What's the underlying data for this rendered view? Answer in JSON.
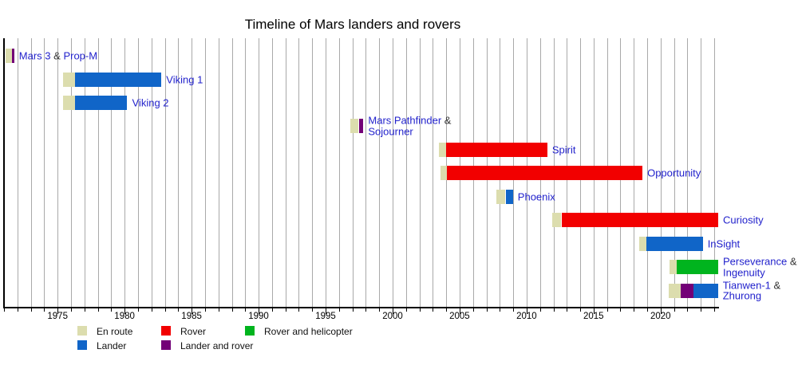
{
  "chart_data": {
    "type": "timeline",
    "title": "Timeline of Mars landers and rovers",
    "x_axis": {
      "min": 1971,
      "max": 2024.3,
      "tick_labels": [
        1975,
        1980,
        1985,
        1990,
        1995,
        2000,
        2005,
        2010,
        2015,
        2020
      ],
      "minor_tick_interval": 1,
      "gridline_interval": 1,
      "gridlines": true
    },
    "colors": {
      "en_route": "#dcddae",
      "rover": "#f20000",
      "rover_and_helicopter": "#00b41e",
      "lander": "#1065c8",
      "lander_and_rover": "#730077",
      "label_link": "#2222cc",
      "label_plain": "#333333",
      "gridline": "#a9a9a9",
      "axis": "#000000"
    },
    "legend": {
      "rows": [
        [
          {
            "label": "En route",
            "type": "en_route"
          },
          {
            "label": "Rover",
            "type": "rover"
          },
          {
            "label": "Rover and helicopter",
            "type": "rover_and_helicopter"
          }
        ],
        [
          {
            "label": "Lander",
            "type": "lander"
          },
          {
            "label": "Lander and rover",
            "type": "lander_and_rover"
          }
        ]
      ]
    },
    "missions": [
      {
        "id": "mars-3-prop-m",
        "label_lines": [
          [
            {
              "text": "Mars 3"
            },
            {
              "text": " & ",
              "sep": true
            },
            {
              "text": "Prop-M"
            }
          ]
        ],
        "segments": [
          {
            "type": "en_route",
            "start": 1971.1,
            "end": 1971.62
          },
          {
            "type": "lander_and_rover",
            "start": 1971.62,
            "end": 1971.76
          }
        ]
      },
      {
        "id": "viking-1",
        "label_lines": [
          [
            {
              "text": "Viking 1"
            }
          ]
        ],
        "segments": [
          {
            "type": "en_route",
            "start": 1975.4,
            "end": 1976.32
          },
          {
            "type": "lander",
            "start": 1976.32,
            "end": 1982.75
          }
        ]
      },
      {
        "id": "viking-2",
        "label_lines": [
          [
            {
              "text": "Viking 2"
            }
          ]
        ],
        "segments": [
          {
            "type": "en_route",
            "start": 1975.4,
            "end": 1976.32
          },
          {
            "type": "lander",
            "start": 1976.32,
            "end": 1980.2
          }
        ]
      },
      {
        "id": "mars-pathfinder-sojourner",
        "label_lines": [
          [
            {
              "text": "Mars Pathfinder"
            },
            {
              "text": " &",
              "sep": true
            }
          ],
          [
            {
              "text": "Sojourner"
            }
          ]
        ],
        "segments": [
          {
            "type": "en_route",
            "start": 1996.85,
            "end": 1997.42
          },
          {
            "type": "lander_and_rover",
            "start": 1997.48,
            "end": 1997.82
          }
        ]
      },
      {
        "id": "spirit",
        "label_lines": [
          [
            {
              "text": "Spirit"
            }
          ]
        ],
        "segments": [
          {
            "type": "en_route",
            "start": 2003.45,
            "end": 2004.0
          },
          {
            "type": "rover",
            "start": 2004.0,
            "end": 2011.55
          }
        ]
      },
      {
        "id": "opportunity",
        "label_lines": [
          [
            {
              "text": "Opportunity"
            }
          ]
        ],
        "segments": [
          {
            "type": "en_route",
            "start": 2003.55,
            "end": 2004.05
          },
          {
            "type": "rover",
            "start": 2004.05,
            "end": 2018.65
          }
        ]
      },
      {
        "id": "phoenix",
        "label_lines": [
          [
            {
              "text": "Phoenix"
            }
          ]
        ],
        "segments": [
          {
            "type": "en_route",
            "start": 2007.72,
            "end": 2008.4
          },
          {
            "type": "lander",
            "start": 2008.47,
            "end": 2008.98
          }
        ]
      },
      {
        "id": "curiosity",
        "label_lines": [
          [
            {
              "text": "Curiosity"
            }
          ]
        ],
        "segments": [
          {
            "type": "en_route",
            "start": 2011.92,
            "end": 2012.6
          },
          {
            "type": "rover",
            "start": 2012.6,
            "end": 2024.3
          }
        ]
      },
      {
        "id": "insight",
        "label_lines": [
          [
            {
              "text": "InSight"
            }
          ]
        ],
        "segments": [
          {
            "type": "en_route",
            "start": 2018.4,
            "end": 2018.92
          },
          {
            "type": "lander",
            "start": 2018.92,
            "end": 2023.15
          }
        ]
      },
      {
        "id": "perseverance-ingenuity",
        "label_lines": [
          [
            {
              "text": "Perseverance"
            },
            {
              "text": " &",
              "sep": true
            }
          ],
          [
            {
              "text": "Ingenuity"
            }
          ]
        ],
        "segments": [
          {
            "type": "en_route",
            "start": 2020.65,
            "end": 2021.22
          },
          {
            "type": "rover_and_helicopter",
            "start": 2021.22,
            "end": 2024.3
          }
        ]
      },
      {
        "id": "tianwen-1-zhurong",
        "label_lines": [
          [
            {
              "text": "Tianwen-1"
            },
            {
              "text": " &",
              "sep": true
            }
          ],
          [
            {
              "text": "Zhurong"
            }
          ]
        ],
        "segments": [
          {
            "type": "en_route",
            "start": 2020.62,
            "end": 2021.5
          },
          {
            "type": "lander_and_rover",
            "start": 2021.5,
            "end": 2022.48
          },
          {
            "type": "lander",
            "start": 2022.48,
            "end": 2024.28
          }
        ]
      }
    ]
  }
}
